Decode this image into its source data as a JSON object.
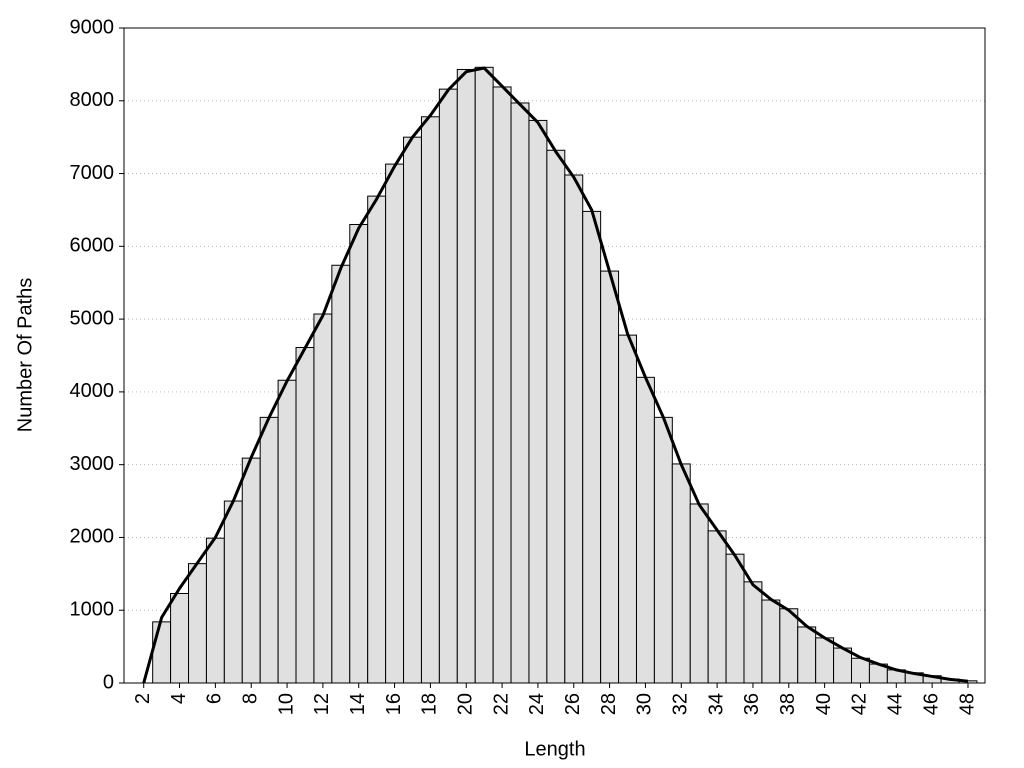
{
  "chart_data": {
    "type": "bar",
    "x_label": "Length",
    "y_label": "Number Of Paths",
    "x": [
      2,
      3,
      4,
      5,
      6,
      7,
      8,
      9,
      10,
      11,
      12,
      13,
      14,
      15,
      16,
      17,
      18,
      19,
      20,
      21,
      22,
      23,
      24,
      25,
      26,
      27,
      28,
      29,
      30,
      31,
      32,
      33,
      34,
      35,
      36,
      37,
      38,
      39,
      40,
      41,
      42,
      43,
      44,
      45,
      46,
      47,
      48
    ],
    "series": [
      {
        "color": "#e0e0e0",
        "values": [
          0,
          840,
          1230,
          1640,
          1990,
          2500,
          3090,
          3650,
          4160,
          4610,
          5070,
          5740,
          6300,
          6690,
          7130,
          7500,
          7780,
          8160,
          8430,
          8460,
          8190,
          7970,
          7730,
          7320,
          6980,
          6480,
          5660,
          4780,
          4200,
          3650,
          3010,
          2460,
          2090,
          1770,
          1390,
          1140,
          1020,
          770,
          620,
          480,
          340,
          260,
          180,
          140,
          100,
          55,
          30
        ]
      },
      {
        "type": "line",
        "color": "#000000",
        "values": [
          0,
          900,
          1300,
          1650,
          2000,
          2500,
          3100,
          3650,
          4150,
          4600,
          5050,
          5700,
          6250,
          6650,
          7100,
          7500,
          7800,
          8150,
          8400,
          8450,
          8200,
          7950,
          7700,
          7300,
          6950,
          6500,
          5650,
          4800,
          4200,
          3650,
          3000,
          2450,
          2100,
          1750,
          1350,
          1150,
          1000,
          780,
          620,
          480,
          350,
          260,
          180,
          130,
          90,
          50,
          25
        ]
      }
    ],
    "xlim": [
      0.9,
      48.95
    ],
    "ylim": [
      0,
      9000
    ],
    "xticks": [
      2,
      4,
      6,
      8,
      10,
      12,
      14,
      16,
      18,
      20,
      22,
      24,
      26,
      28,
      30,
      32,
      34,
      36,
      38,
      40,
      42,
      44,
      46,
      48
    ],
    "yticks": [
      0,
      1000,
      2000,
      3000,
      4000,
      5000,
      6000,
      7000,
      8000,
      9000
    ],
    "grid": true
  }
}
